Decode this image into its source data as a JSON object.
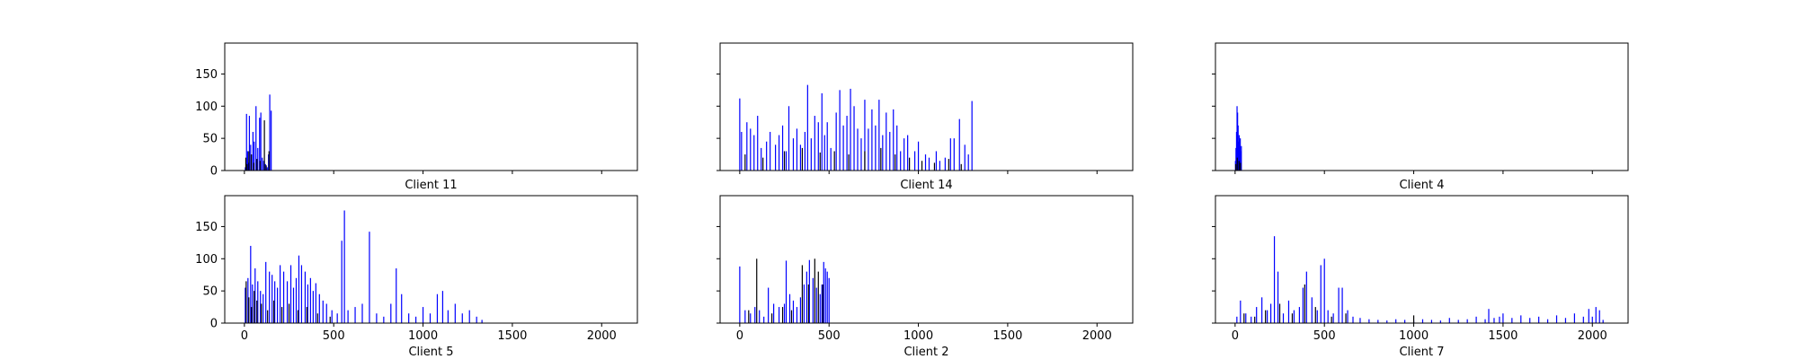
{
  "colors": {
    "primary_bar": "#0000ff",
    "secondary_bar": "#000000",
    "axes": "#000000",
    "background": "#ffffff"
  },
  "chart_data": [
    {
      "type": "bar",
      "title": "",
      "xlabel": "Client 11",
      "ylabel": "",
      "xlim": [
        -110,
        2200
      ],
      "ylim": [
        0,
        198
      ],
      "xticks": [
        0,
        500,
        1000,
        1500,
        2000
      ],
      "yticks": [
        0,
        50,
        100,
        150
      ],
      "x_tick_labels_visible": false,
      "y_tick_labels_visible": true,
      "grid": false,
      "series": [
        {
          "color": "blue",
          "x": [
            5,
            12,
            18,
            22,
            28,
            35,
            40,
            48,
            55,
            65,
            75,
            85,
            92,
            100,
            108,
            118,
            128,
            135,
            142,
            150
          ],
          "values": [
            5,
            88,
            30,
            12,
            85,
            40,
            25,
            60,
            45,
            100,
            35,
            82,
            90,
            20,
            15,
            10,
            5,
            25,
            118,
            93
          ]
        },
        {
          "color": "black",
          "x": [
            8,
            15,
            25,
            38,
            52,
            70,
            88,
            112,
            122,
            138
          ],
          "values": [
            20,
            10,
            30,
            25,
            12,
            18,
            15,
            78,
            8,
            30
          ]
        }
      ]
    },
    {
      "type": "bar",
      "title": "",
      "xlabel": "Client 14",
      "ylabel": "",
      "xlim": [
        -110,
        2200
      ],
      "ylim": [
        0,
        198
      ],
      "xticks": [
        0,
        500,
        1000,
        1500,
        2000
      ],
      "yticks": [
        0,
        50,
        100,
        150
      ],
      "x_tick_labels_visible": false,
      "y_tick_labels_visible": false,
      "grid": false,
      "series": [
        {
          "color": "blue",
          "x": [
            0,
            10,
            40,
            60,
            80,
            100,
            120,
            150,
            170,
            200,
            220,
            240,
            260,
            275,
            300,
            320,
            340,
            365,
            380,
            400,
            420,
            440,
            460,
            475,
            490,
            510,
            540,
            560,
            580,
            600,
            620,
            640,
            660,
            680,
            700,
            720,
            740,
            760,
            780,
            800,
            820,
            840,
            860,
            880,
            900,
            920,
            940,
            980,
            1000,
            1040,
            1060,
            1100,
            1120,
            1150,
            1180,
            1200,
            1230,
            1260,
            1280,
            1300
          ],
          "values": [
            112,
            60,
            75,
            65,
            55,
            85,
            35,
            45,
            60,
            40,
            55,
            70,
            30,
            100,
            50,
            65,
            40,
            60,
            133,
            50,
            85,
            75,
            120,
            55,
            75,
            35,
            90,
            125,
            70,
            85,
            127,
            100,
            65,
            50,
            110,
            65,
            95,
            70,
            110,
            55,
            90,
            60,
            95,
            70,
            30,
            50,
            55,
            30,
            45,
            25,
            20,
            30,
            15,
            20,
            50,
            50,
            80,
            40,
            25,
            108
          ]
        },
        {
          "color": "black",
          "x": [
            30,
            130,
            250,
            350,
            450,
            530,
            610,
            700,
            790,
            870,
            950,
            1020,
            1090,
            1170,
            1240
          ],
          "values": [
            25,
            20,
            30,
            35,
            28,
            30,
            25,
            30,
            35,
            25,
            20,
            15,
            12,
            18,
            10
          ]
        }
      ]
    },
    {
      "type": "bar",
      "title": "",
      "xlabel": "Client 4",
      "ylabel": "",
      "xlim": [
        -110,
        2200
      ],
      "ylim": [
        0,
        198
      ],
      "xticks": [
        0,
        500,
        1000,
        1500,
        2000
      ],
      "yticks": [
        0,
        50,
        100,
        150
      ],
      "x_tick_labels_visible": false,
      "y_tick_labels_visible": false,
      "grid": false,
      "series": [
        {
          "color": "blue",
          "x": [
            2,
            5,
            8,
            11,
            14,
            17,
            20,
            23,
            26,
            29,
            32,
            35
          ],
          "values": [
            15,
            35,
            60,
            100,
            90,
            70,
            45,
            55,
            40,
            50,
            30,
            38
          ]
        },
        {
          "color": "black",
          "x": [
            4,
            12,
            22,
            30
          ],
          "values": [
            10,
            20,
            15,
            12
          ]
        }
      ]
    },
    {
      "type": "bar",
      "title": "",
      "xlabel": "Client 5",
      "ylabel": "",
      "xlim": [
        -110,
        2200
      ],
      "ylim": [
        0,
        198
      ],
      "xticks": [
        0,
        500,
        1000,
        1500,
        2000
      ],
      "yticks": [
        0,
        50,
        100,
        150
      ],
      "x_tick_labels_visible": true,
      "y_tick_labels_visible": true,
      "grid": false,
      "series": [
        {
          "color": "blue",
          "x": [
            5,
            20,
            35,
            45,
            60,
            75,
            90,
            105,
            120,
            140,
            155,
            170,
            185,
            200,
            220,
            240,
            260,
            275,
            290,
            305,
            320,
            340,
            355,
            370,
            385,
            400,
            420,
            440,
            460,
            490,
            520,
            545,
            560,
            580,
            620,
            660,
            700,
            740,
            780,
            820,
            850,
            880,
            920,
            960,
            1000,
            1040,
            1080,
            1110,
            1140,
            1180,
            1220,
            1260,
            1300,
            1330
          ],
          "values": [
            55,
            70,
            120,
            60,
            85,
            65,
            50,
            45,
            95,
            80,
            75,
            65,
            55,
            90,
            80,
            65,
            90,
            55,
            70,
            105,
            90,
            80,
            60,
            70,
            50,
            62,
            45,
            35,
            30,
            20,
            15,
            128,
            175,
            20,
            25,
            30,
            142,
            15,
            10,
            30,
            85,
            45,
            15,
            10,
            25,
            15,
            45,
            50,
            20,
            30,
            15,
            20,
            10,
            5
          ]
        },
        {
          "color": "black",
          "x": [
            10,
            25,
            40,
            55,
            70,
            95,
            130,
            165,
            210,
            250,
            300,
            350,
            410,
            480
          ],
          "values": [
            65,
            40,
            25,
            50,
            35,
            30,
            20,
            35,
            25,
            30,
            20,
            25,
            15,
            10
          ]
        }
      ]
    },
    {
      "type": "bar",
      "title": "",
      "xlabel": "Client 2",
      "ylabel": "",
      "xlim": [
        -110,
        2200
      ],
      "ylim": [
        0,
        198
      ],
      "xticks": [
        0,
        500,
        1000,
        1500,
        2000
      ],
      "yticks": [
        0,
        50,
        100,
        150
      ],
      "x_tick_labels_visible": true,
      "y_tick_labels_visible": false,
      "grid": false,
      "series": [
        {
          "color": "blue",
          "x": [
            0,
            30,
            60,
            85,
            110,
            135,
            160,
            190,
            220,
            250,
            260,
            280,
            300,
            320,
            340,
            360,
            375,
            390,
            410,
            430,
            450,
            460,
            470,
            480,
            490,
            500
          ],
          "values": [
            88,
            20,
            15,
            25,
            20,
            10,
            55,
            30,
            25,
            30,
            97,
            45,
            35,
            25,
            40,
            60,
            80,
            98,
            70,
            55,
            45,
            60,
            95,
            85,
            80,
            70
          ]
        },
        {
          "color": "black",
          "x": [
            50,
            95,
            180,
            240,
            290,
            350,
            385,
            420,
            440,
            465
          ],
          "values": [
            20,
            100,
            15,
            25,
            20,
            90,
            60,
            100,
            80,
            60
          ]
        }
      ]
    },
    {
      "type": "bar",
      "title": "",
      "xlabel": "Client 7",
      "ylabel": "",
      "xlim": [
        -110,
        2200
      ],
      "ylim": [
        0,
        198
      ],
      "xticks": [
        0,
        500,
        1000,
        1500,
        2000
      ],
      "yticks": [
        0,
        50,
        100,
        150
      ],
      "x_tick_labels_visible": true,
      "y_tick_labels_visible": false,
      "grid": false,
      "series": [
        {
          "color": "blue",
          "x": [
            10,
            30,
            60,
            90,
            120,
            150,
            180,
            200,
            220,
            240,
            270,
            300,
            330,
            360,
            380,
            400,
            430,
            460,
            480,
            500,
            520,
            550,
            580,
            600,
            630,
            660,
            700,
            750,
            800,
            850,
            900,
            950,
            1000,
            1050,
            1100,
            1150,
            1200,
            1250,
            1300,
            1350,
            1400,
            1420,
            1450,
            1480,
            1500,
            1550,
            1600,
            1650,
            1700,
            1750,
            1800,
            1850,
            1900,
            1950,
            1980,
            2000,
            2020,
            2040,
            2060
          ],
          "values": [
            10,
            35,
            15,
            10,
            25,
            40,
            20,
            30,
            135,
            80,
            15,
            35,
            20,
            25,
            55,
            80,
            40,
            20,
            90,
            100,
            20,
            15,
            55,
            55,
            20,
            10,
            8,
            6,
            5,
            4,
            6,
            5,
            4,
            6,
            5,
            4,
            8,
            5,
            6,
            10,
            6,
            22,
            8,
            10,
            15,
            8,
            12,
            8,
            10,
            6,
            12,
            8,
            15,
            10,
            22,
            10,
            25,
            20,
            5
          ]
        },
        {
          "color": "black",
          "x": [
            50,
            110,
            170,
            250,
            320,
            390,
            450,
            540,
            620,
            1000
          ],
          "values": [
            15,
            10,
            20,
            30,
            15,
            60,
            25,
            10,
            15,
            12
          ]
        }
      ]
    }
  ]
}
